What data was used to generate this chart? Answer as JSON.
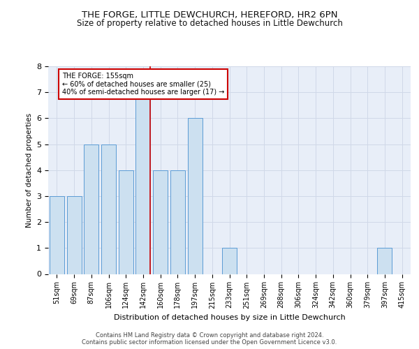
{
  "title1": "THE FORGE, LITTLE DEWCHURCH, HEREFORD, HR2 6PN",
  "title2": "Size of property relative to detached houses in Little Dewchurch",
  "xlabel": "Distribution of detached houses by size in Little Dewchurch",
  "ylabel": "Number of detached properties",
  "categories": [
    "51sqm",
    "69sqm",
    "87sqm",
    "106sqm",
    "124sqm",
    "142sqm",
    "160sqm",
    "178sqm",
    "197sqm",
    "215sqm",
    "233sqm",
    "251sqm",
    "269sqm",
    "288sqm",
    "306sqm",
    "324sqm",
    "342sqm",
    "360sqm",
    "379sqm",
    "397sqm",
    "415sqm"
  ],
  "values": [
    3,
    3,
    5,
    5,
    4,
    7,
    4,
    4,
    6,
    0,
    1,
    0,
    0,
    0,
    0,
    0,
    0,
    0,
    0,
    1,
    0
  ],
  "bar_color": "#cce0f0",
  "bar_edge_color": "#5b9bd5",
  "grid_color": "#d0d8e8",
  "background_color": "#e8eef8",
  "red_line_index": 5,
  "red_line_color": "#cc0000",
  "annotation_text": "THE FORGE: 155sqm\n← 60% of detached houses are smaller (25)\n40% of semi-detached houses are larger (17) →",
  "annotation_box_color": "#ffffff",
  "annotation_edge_color": "#cc0000",
  "ylim": [
    0,
    8
  ],
  "yticks": [
    0,
    1,
    2,
    3,
    4,
    5,
    6,
    7,
    8
  ],
  "footer1": "Contains HM Land Registry data © Crown copyright and database right 2024.",
  "footer2": "Contains public sector information licensed under the Open Government Licence v3.0."
}
